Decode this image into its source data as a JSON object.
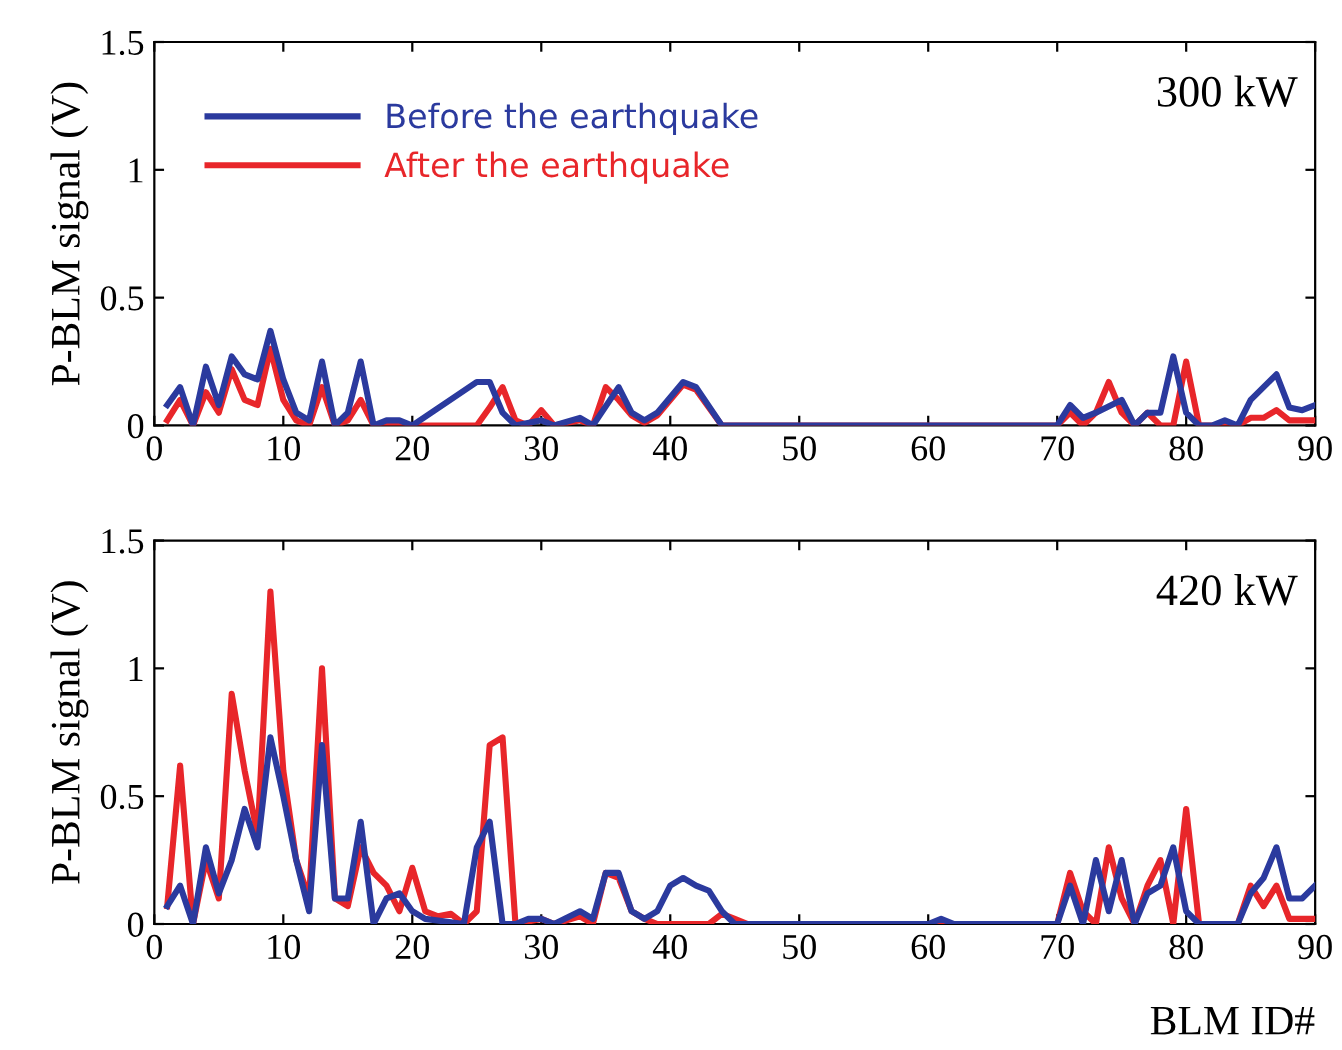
{
  "chart_data": [
    {
      "type": "line",
      "ylabel": "P-BLM signal (V)",
      "annotations": [
        "300 kW"
      ],
      "xlim": [
        0,
        90
      ],
      "xticks": [
        0,
        10,
        20,
        30,
        40,
        50,
        60,
        70,
        80,
        90
      ],
      "ylim": [
        0,
        1.5
      ],
      "yticks": [
        0,
        0.5,
        1,
        1.5
      ],
      "legend": "top left",
      "grid": false,
      "series": [
        {
          "name": "Before the earthquake",
          "color": "#2b3a9e",
          "x": [
            1,
            2,
            3,
            4,
            5,
            6,
            7,
            8,
            9,
            10,
            11,
            12,
            13,
            14,
            15,
            16,
            17,
            18,
            19,
            20,
            25,
            26,
            27,
            28,
            30,
            31,
            33,
            34,
            36,
            37,
            38,
            39,
            41,
            42,
            44,
            70,
            71,
            72,
            73,
            75,
            76,
            77,
            78,
            79,
            80,
            81,
            82,
            83,
            84,
            85,
            87,
            88,
            89,
            90
          ],
          "values": [
            0.08,
            0.15,
            0.0,
            0.23,
            0.08,
            0.27,
            0.2,
            0.18,
            0.37,
            0.18,
            0.05,
            0.02,
            0.25,
            0.0,
            0.05,
            0.25,
            0.0,
            0.02,
            0.02,
            0.0,
            0.17,
            0.17,
            0.05,
            0.0,
            0.02,
            0.0,
            0.03,
            0.0,
            0.15,
            0.05,
            0.02,
            0.05,
            0.17,
            0.15,
            0.0,
            0.0,
            0.08,
            0.03,
            0.05,
            0.1,
            0.0,
            0.05,
            0.05,
            0.27,
            0.05,
            0.0,
            0.0,
            0.02,
            0.0,
            0.1,
            0.2,
            0.07,
            0.06,
            0.08
          ]
        },
        {
          "name": "After the earthquake",
          "color": "#e8262a",
          "x": [
            1,
            2,
            3,
            4,
            5,
            6,
            7,
            8,
            9,
            10,
            11,
            12,
            13,
            14,
            15,
            16,
            17,
            18,
            20,
            25,
            26,
            27,
            28,
            29,
            30,
            31,
            33,
            34,
            35,
            36,
            37,
            38,
            39,
            41,
            42,
            44,
            70,
            71,
            72,
            73,
            74,
            75,
            76,
            77,
            78,
            79,
            80,
            81,
            84,
            85,
            86,
            87,
            88,
            90
          ],
          "values": [
            0.02,
            0.1,
            0.0,
            0.13,
            0.05,
            0.22,
            0.1,
            0.08,
            0.3,
            0.1,
            0.02,
            0.0,
            0.15,
            0.0,
            0.02,
            0.1,
            0.0,
            0.0,
            0.0,
            0.0,
            0.07,
            0.15,
            0.02,
            0.0,
            0.06,
            0.0,
            0.02,
            0.0,
            0.15,
            0.1,
            0.04,
            0.01,
            0.04,
            0.16,
            0.14,
            0.0,
            0.0,
            0.05,
            0.0,
            0.05,
            0.17,
            0.05,
            0.0,
            0.05,
            0.0,
            0.0,
            0.25,
            0.0,
            0.0,
            0.03,
            0.03,
            0.06,
            0.02,
            0.02
          ]
        }
      ]
    },
    {
      "type": "line",
      "ylabel": "P-BLM signal (V)",
      "xlabel": "BLM ID#",
      "annotations": [
        "420 kW"
      ],
      "xlim": [
        0,
        90
      ],
      "xticks": [
        0,
        10,
        20,
        30,
        40,
        50,
        60,
        70,
        80,
        90
      ],
      "ylim": [
        0,
        1.5
      ],
      "yticks": [
        0,
        0.5,
        1,
        1.5
      ],
      "grid": false,
      "series": [
        {
          "color": "#2b3a9e",
          "x": [
            1,
            2,
            3,
            4,
            5,
            6,
            7,
            8,
            9,
            10,
            11,
            12,
            13,
            14,
            15,
            16,
            17,
            18,
            19,
            20,
            21,
            24,
            25,
            26,
            27,
            28,
            29,
            30,
            31,
            33,
            34,
            35,
            36,
            37,
            38,
            39,
            40,
            41,
            42,
            43,
            44,
            45,
            60,
            61,
            62,
            70,
            71,
            72,
            73,
            74,
            75,
            76,
            77,
            78,
            79,
            80,
            81,
            84,
            85,
            86,
            87,
            88,
            89,
            90
          ],
          "values": [
            0.07,
            0.15,
            0.0,
            0.3,
            0.12,
            0.25,
            0.45,
            0.3,
            0.73,
            0.5,
            0.25,
            0.05,
            0.7,
            0.1,
            0.1,
            0.4,
            0.0,
            0.1,
            0.12,
            0.05,
            0.02,
            0.0,
            0.3,
            0.4,
            0.0,
            0.0,
            0.02,
            0.02,
            0.0,
            0.05,
            0.02,
            0.2,
            0.2,
            0.05,
            0.02,
            0.05,
            0.15,
            0.18,
            0.15,
            0.13,
            0.05,
            0.0,
            0.0,
            0.02,
            0.0,
            0.0,
            0.15,
            0.0,
            0.25,
            0.05,
            0.25,
            0.0,
            0.12,
            0.15,
            0.3,
            0.05,
            0.0,
            0.0,
            0.12,
            0.18,
            0.3,
            0.1,
            0.1,
            0.15
          ]
        },
        {
          "color": "#e8262a",
          "x": [
            1,
            2,
            3,
            4,
            5,
            6,
            7,
            8,
            9,
            10,
            11,
            12,
            13,
            14,
            15,
            16,
            17,
            18,
            19,
            20,
            21,
            22,
            23,
            24,
            25,
            26,
            27,
            28,
            30,
            31,
            33,
            34,
            35,
            36,
            37,
            38,
            39,
            43,
            44,
            45,
            46,
            70,
            71,
            72,
            73,
            74,
            75,
            76,
            77,
            78,
            79,
            80,
            81,
            84,
            85,
            86,
            87,
            88,
            89,
            90
          ],
          "values": [
            0.07,
            0.62,
            0.0,
            0.25,
            0.1,
            0.9,
            0.6,
            0.35,
            1.3,
            0.6,
            0.25,
            0.1,
            1.0,
            0.1,
            0.07,
            0.3,
            0.2,
            0.15,
            0.05,
            0.22,
            0.05,
            0.03,
            0.04,
            0.0,
            0.05,
            0.7,
            0.73,
            0.0,
            0.02,
            0.0,
            0.03,
            0.0,
            0.2,
            0.18,
            0.05,
            0.02,
            0.0,
            0.0,
            0.04,
            0.02,
            0.0,
            0.0,
            0.2,
            0.05,
            0.0,
            0.3,
            0.1,
            0.0,
            0.15,
            0.25,
            0.0,
            0.45,
            0.0,
            0.0,
            0.15,
            0.07,
            0.15,
            0.02,
            0.02,
            0.02
          ]
        }
      ]
    }
  ]
}
